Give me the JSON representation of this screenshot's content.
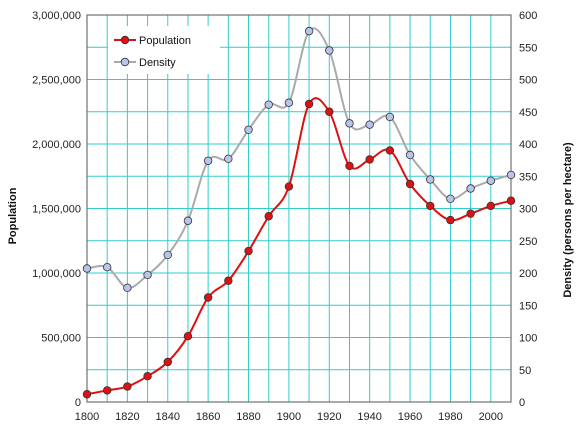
{
  "chart_data": {
    "type": "line",
    "xlabel": "",
    "ylabel": "Population",
    "y2label": "Density (persons per hectare)",
    "xlim": [
      1800,
      2010
    ],
    "ylim": [
      0,
      3000000
    ],
    "y2lim": [
      0,
      600
    ],
    "x_ticks": [
      "1800",
      "1820",
      "1840",
      "1860",
      "1880",
      "1900",
      "1920",
      "1940",
      "1960",
      "1980",
      "2000"
    ],
    "y_ticks": [
      "0",
      "500,000",
      "1,000,000",
      "1,500,000",
      "2,000,000",
      "2,500,000",
      "3,000,000"
    ],
    "y2_ticks": [
      "0",
      "50",
      "100",
      "150",
      "200",
      "250",
      "300",
      "350",
      "400",
      "450",
      "500",
      "550",
      "600"
    ],
    "grid": true,
    "legend": "top-left",
    "series": [
      {
        "name": "Population",
        "axis": "left",
        "color": "#dd1111",
        "marker_fill": "#dd1111",
        "x": [
          1800,
          1810,
          1820,
          1830,
          1840,
          1850,
          1860,
          1870,
          1880,
          1890,
          1900,
          1910,
          1920,
          1930,
          1940,
          1950,
          1960,
          1970,
          1980,
          1990,
          2000,
          2010
        ],
        "values": [
          60000,
          90000,
          120000,
          200000,
          310000,
          510000,
          810000,
          940000,
          1170000,
          1440000,
          1670000,
          2310000,
          2250000,
          1830000,
          1880000,
          1950000,
          1690000,
          1520000,
          1410000,
          1460000,
          1520000,
          1560000
        ]
      },
      {
        "name": "Density",
        "axis": "right",
        "color": "#aaaaaa",
        "marker_fill": "#b8c4ea",
        "x": [
          1800,
          1810,
          1820,
          1830,
          1840,
          1850,
          1860,
          1870,
          1880,
          1890,
          1900,
          1910,
          1920,
          1930,
          1940,
          1950,
          1960,
          1970,
          1980,
          1990,
          2000,
          2010
        ],
        "values": [
          207,
          209,
          177,
          197,
          228,
          281,
          374,
          377,
          422,
          461,
          464,
          575,
          545,
          432,
          430,
          442,
          383,
          345,
          315,
          331,
          343,
          352
        ]
      }
    ]
  }
}
